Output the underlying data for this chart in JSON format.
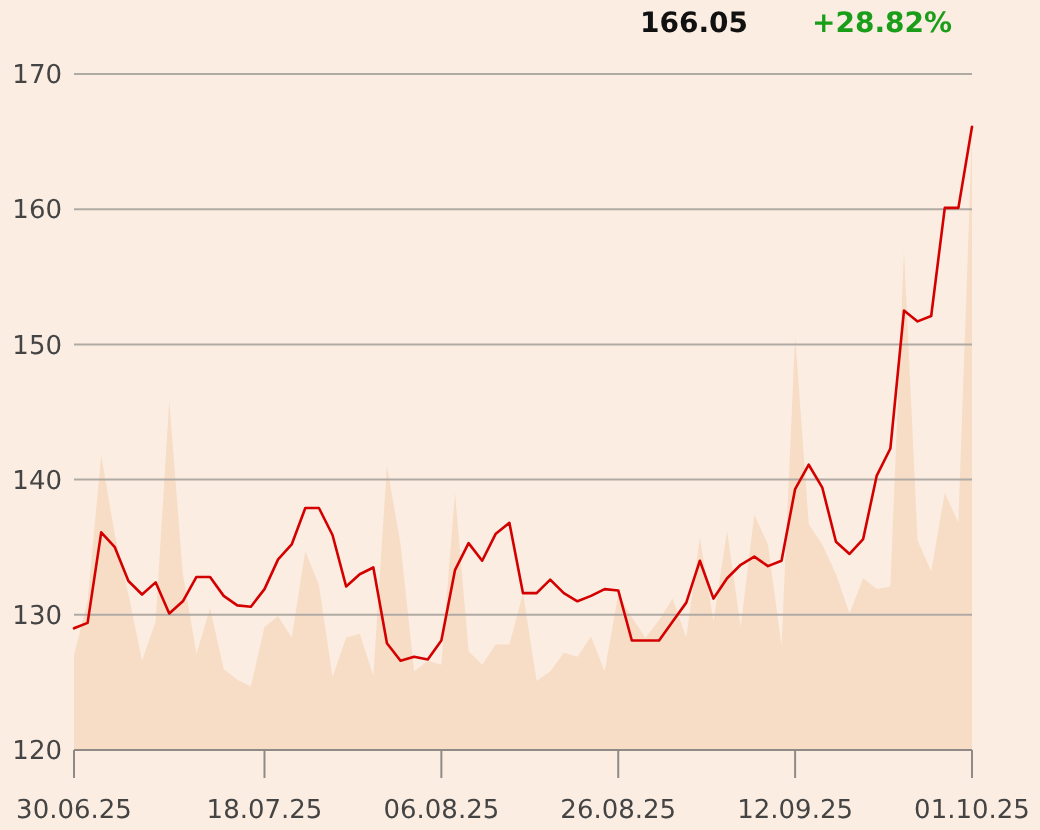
{
  "chart_data": {
    "type": "line",
    "title": "166.05",
    "subtitle": "+28.82%",
    "categories": [
      "30.06.25",
      null,
      null,
      null,
      null,
      null,
      null,
      null,
      null,
      null,
      null,
      null,
      null,
      null,
      "18.07.25",
      null,
      null,
      null,
      null,
      null,
      null,
      null,
      null,
      null,
      null,
      null,
      null,
      "06.08.25",
      null,
      null,
      null,
      null,
      null,
      null,
      null,
      null,
      null,
      null,
      null,
      null,
      "26.08.25",
      null,
      null,
      null,
      null,
      null,
      null,
      null,
      null,
      null,
      null,
      null,
      null,
      "12.09.25",
      null,
      null,
      null,
      null,
      null,
      null,
      null,
      null,
      null,
      null,
      null,
      null,
      "01.10.25"
    ],
    "series": [
      {
        "type": "area",
        "color": "#f7dcc6",
        "values": [
          127.0,
          131.0,
          141.8,
          135.9,
          131.5,
          126.6,
          129.5,
          145.8,
          133.0,
          127.1,
          130.5,
          126.0,
          125.2,
          124.7,
          129.1,
          129.9,
          128.3,
          134.7,
          132.2,
          125.4,
          128.3,
          128.6,
          125.5,
          141.0,
          135.2,
          125.8,
          126.6,
          126.3,
          139.0,
          127.3,
          126.3,
          127.8,
          127.8,
          131.6,
          125.1,
          125.8,
          127.2,
          126.9,
          128.4,
          125.8,
          131.5,
          129.8,
          128.3,
          129.6,
          131.2,
          128.3,
          135.7,
          129.5,
          136.2,
          129.1,
          137.4,
          135.2,
          127.7,
          150.6,
          136.7,
          135.2,
          133.0,
          130.1,
          132.7,
          131.9,
          132.1,
          156.9,
          135.5,
          133.2,
          139.0,
          136.8,
          165.6
        ]
      },
      {
        "color": "#d40000",
        "values": [
          129.0,
          129.4,
          136.1,
          135.0,
          132.5,
          131.5,
          132.4,
          130.1,
          131.0,
          132.8,
          132.8,
          131.4,
          130.7,
          130.6,
          131.9,
          134.1,
          135.2,
          137.9,
          137.9,
          135.9,
          132.1,
          133.0,
          133.5,
          127.9,
          126.6,
          126.9,
          126.7,
          128.1,
          133.3,
          135.3,
          134.0,
          136.0,
          136.8,
          131.6,
          131.6,
          132.6,
          131.6,
          131.0,
          131.4,
          131.9,
          131.8,
          128.1,
          128.1,
          128.1,
          129.5,
          130.9,
          134.0,
          131.2,
          132.7,
          133.7,
          134.3,
          133.6,
          134.0,
          139.3,
          141.1,
          139.4,
          135.4,
          134.5,
          135.6,
          140.3,
          142.3,
          152.5,
          151.7,
          152.1,
          160.1,
          160.1,
          166.1
        ]
      }
    ],
    "ylim": [
      120,
      170
    ],
    "yticks": [
      120,
      130,
      140,
      150,
      160,
      170
    ],
    "grid": "y"
  }
}
